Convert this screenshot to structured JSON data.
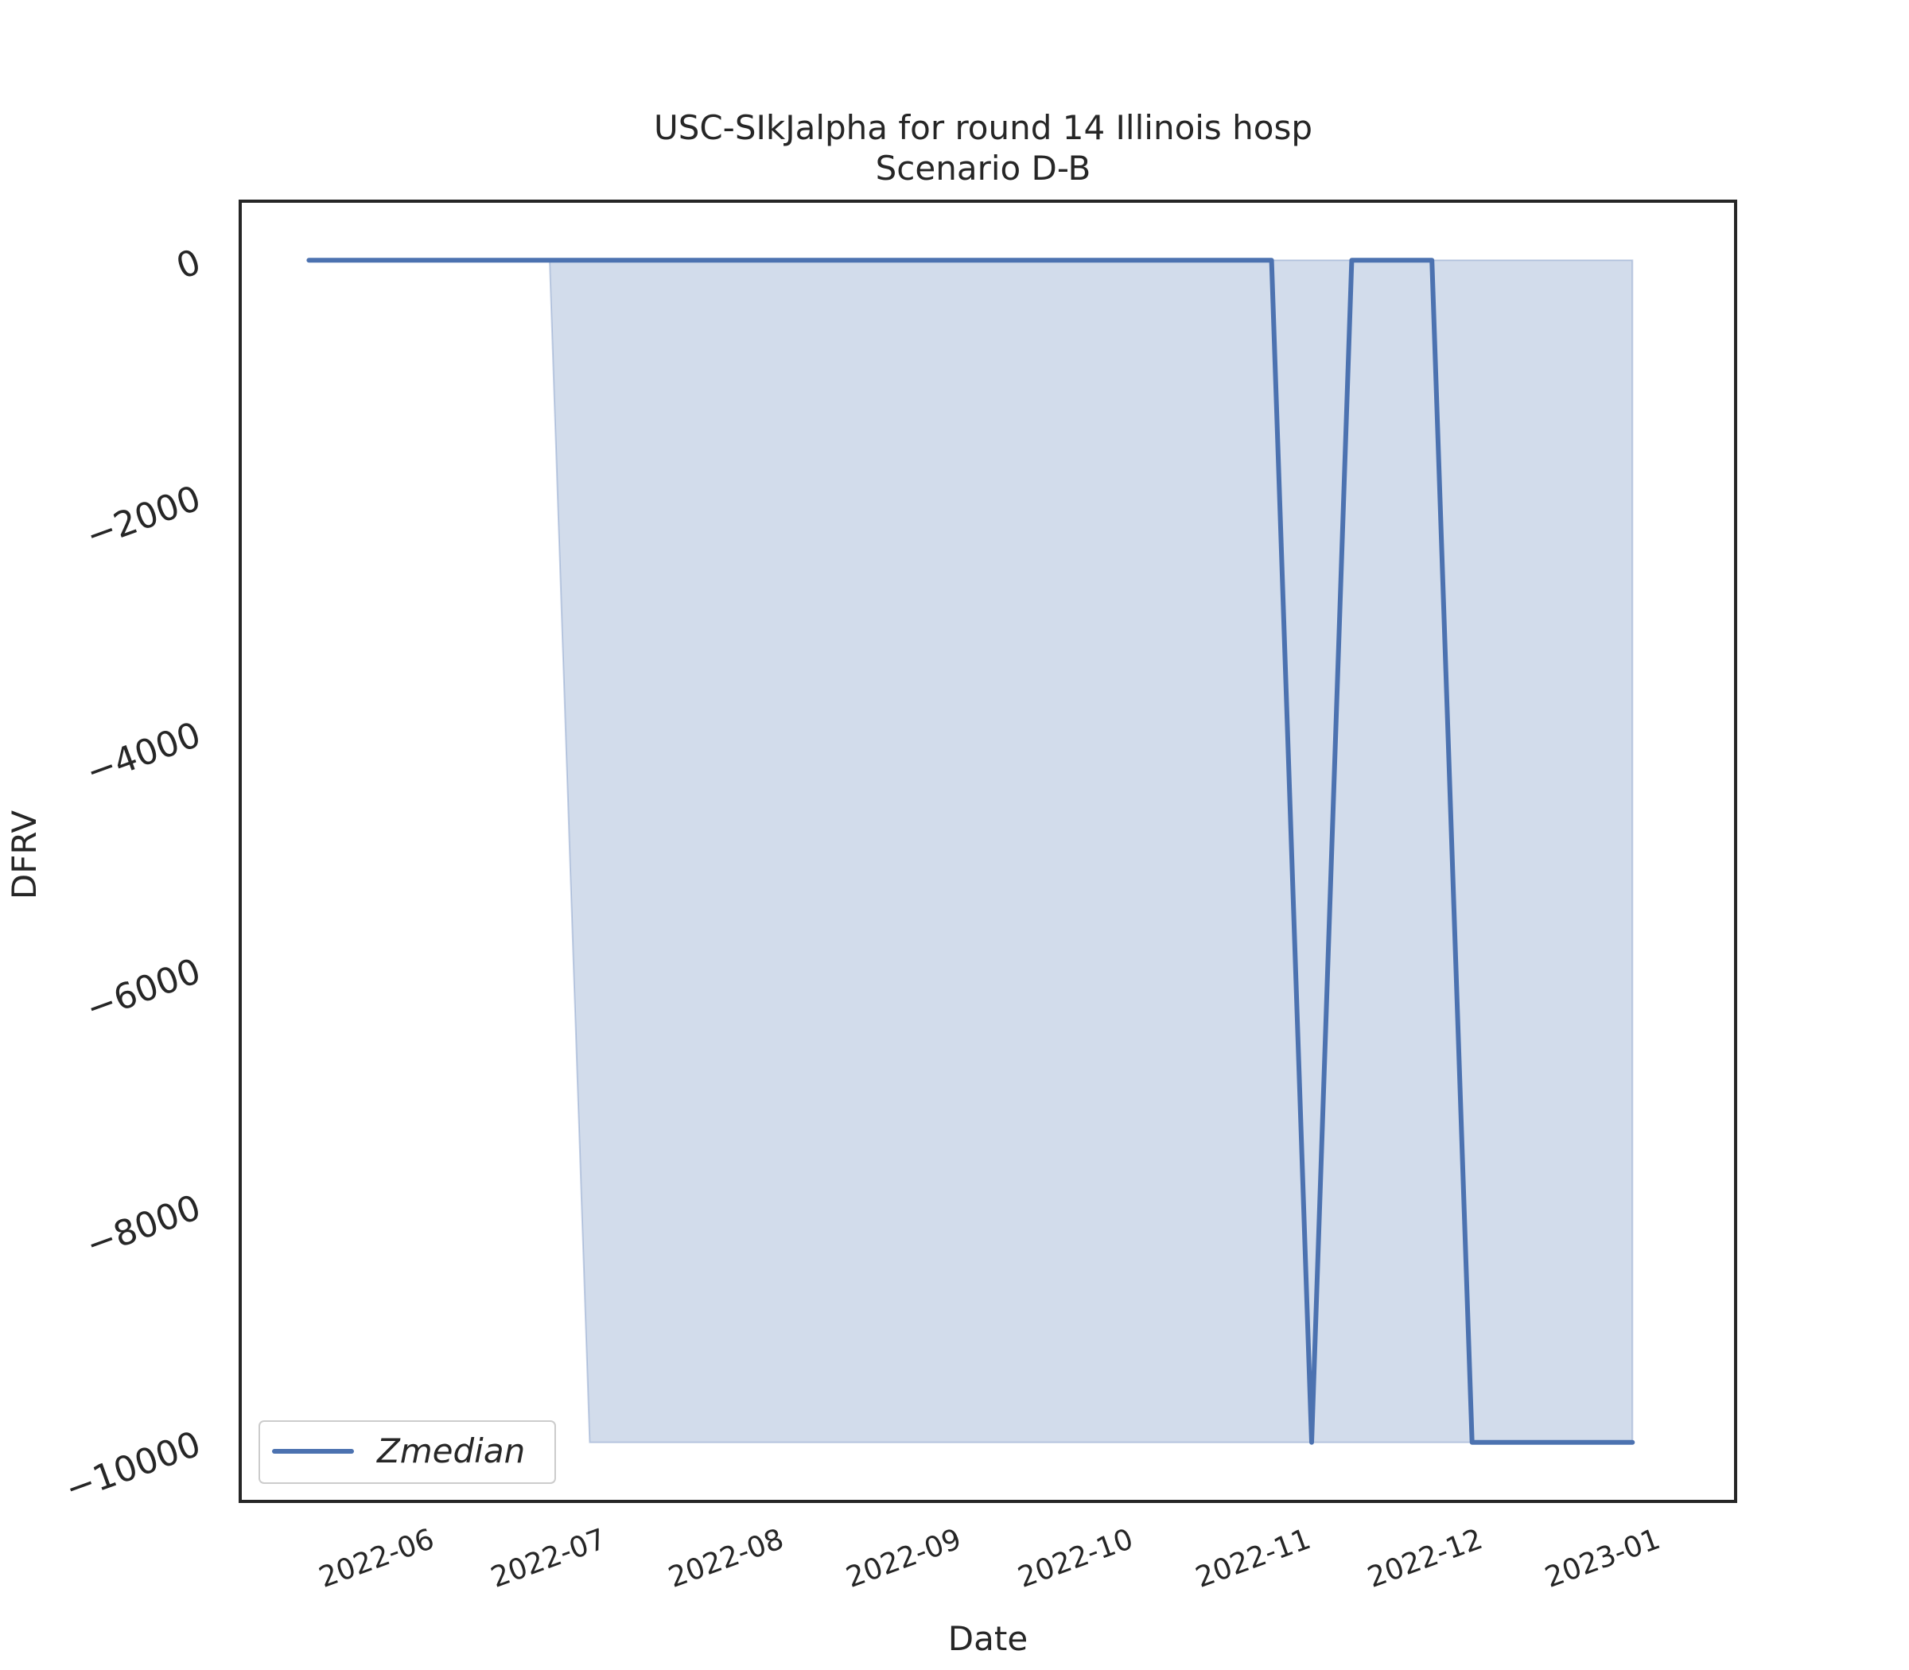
{
  "chart_data": {
    "type": "line",
    "title": "USC-SIkJalpha for round 14 Illinois hosp",
    "subtitle": "Scenario D-B",
    "xlabel": "Date",
    "ylabel": "DFRV",
    "xlim": [
      "2022-05-02",
      "2023-01-18"
    ],
    "ylim": [
      -10500,
      500
    ],
    "yticks": [
      0,
      -2000,
      -4000,
      -6000,
      -8000,
      -10000
    ],
    "ytick_labels": [
      "0",
      "−2000",
      "−4000",
      "−6000",
      "−8000",
      "−10000"
    ],
    "xticks": [
      "2022-06-01",
      "2022-07-01",
      "2022-08-01",
      "2022-09-01",
      "2022-10-01",
      "2022-11-01",
      "2022-12-01",
      "2023-01-01"
    ],
    "xtick_labels": [
      "2022-06",
      "2022-07",
      "2022-08",
      "2022-09",
      "2022-10",
      "2022-11",
      "2022-12",
      "2023-01"
    ],
    "grid": false,
    "legend_position": "lower-left",
    "series": [
      {
        "name": "Zmedian",
        "color": "#4c72b0",
        "x": [
          "2022-05-14",
          "2022-10-29",
          "2022-11-05",
          "2022-11-12",
          "2022-11-26",
          "2022-12-03",
          "2022-12-31"
        ],
        "y": [
          0,
          0,
          -10000,
          0,
          0,
          -10000,
          -10000
        ]
      }
    ],
    "band": {
      "color": "#4c72b0",
      "x": [
        "2022-06-25",
        "2022-07-02",
        "2022-12-31"
      ],
      "lower": [
        0,
        -10000,
        -10000
      ],
      "upper": [
        0,
        0,
        0
      ]
    }
  }
}
